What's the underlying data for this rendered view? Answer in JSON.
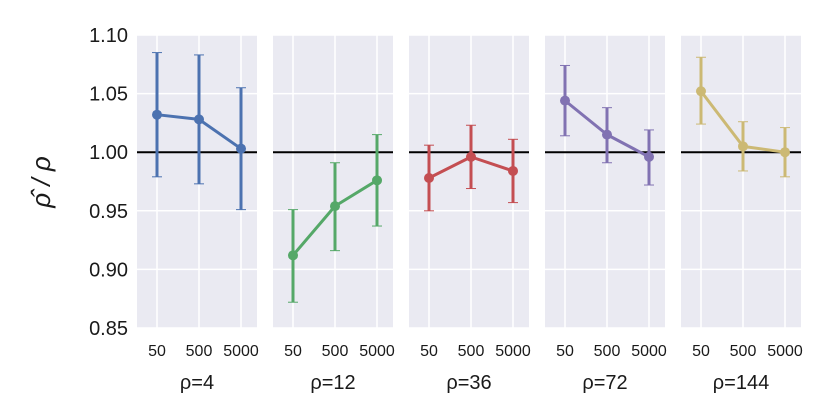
{
  "chart_data": {
    "type": "line",
    "ylabel": "ρ̂ / ρ",
    "ylim": [
      0.85,
      1.1
    ],
    "yticks": [
      "1.10",
      "1.05",
      "1.00",
      "0.95",
      "0.90",
      "0.85"
    ],
    "ytick_values": [
      1.1,
      1.05,
      1.0,
      0.95,
      0.9,
      0.85
    ],
    "categories": [
      "50",
      "500",
      "5000"
    ],
    "reference_line": 1.0,
    "grid": true,
    "background": "#eaeaf2",
    "panels": [
      {
        "title": "ρ=4",
        "color": "#4c72b0",
        "values": [
          1.032,
          1.028,
          1.003
        ],
        "lower": [
          0.979,
          0.973,
          0.951
        ],
        "upper": [
          1.085,
          1.083,
          1.055
        ]
      },
      {
        "title": "ρ=12",
        "color": "#55a868",
        "values": [
          0.912,
          0.954,
          0.976
        ],
        "lower": [
          0.872,
          0.916,
          0.937
        ],
        "upper": [
          0.951,
          0.991,
          1.015
        ]
      },
      {
        "title": "ρ=36",
        "color": "#c44e52",
        "values": [
          0.978,
          0.996,
          0.984
        ],
        "lower": [
          0.95,
          0.969,
          0.957
        ],
        "upper": [
          1.006,
          1.023,
          1.011
        ]
      },
      {
        "title": "ρ=72",
        "color": "#8172b2",
        "values": [
          1.044,
          1.015,
          0.996
        ],
        "lower": [
          1.014,
          0.991,
          0.972
        ],
        "upper": [
          1.074,
          1.038,
          1.019
        ]
      },
      {
        "title": "ρ=144",
        "color": "#ccb974",
        "values": [
          1.052,
          1.005,
          1.0
        ],
        "lower": [
          1.024,
          0.984,
          0.979
        ],
        "upper": [
          1.081,
          1.026,
          1.021
        ]
      }
    ]
  }
}
